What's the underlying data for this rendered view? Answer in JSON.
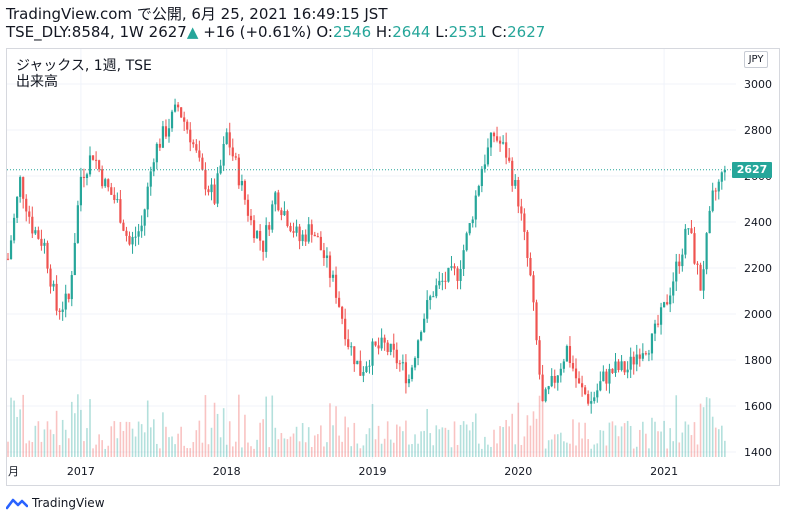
{
  "header": {
    "line1": "TradingView.com で公開, 6月 25, 2021 16:49:15 JST",
    "ticker": "TSE_DLY:8584, 1W",
    "price": "2627",
    "change": "+16 (+0.61%)",
    "o_label": "O:",
    "o_value": "2546",
    "h_label": "H:",
    "h_value": "2644",
    "l_label": "L:",
    "l_value": "2531",
    "c_label": "C:",
    "c_value": "2627"
  },
  "legend": {
    "line1": "ジャックス, 1週, TSE",
    "line2": "出来高"
  },
  "currency_badge": "JPY",
  "last_price_tag": "2627",
  "footer": {
    "brand": "TradingView"
  },
  "chart_data": {
    "type": "candlestick",
    "interval": "1W",
    "y_range": [
      1380,
      3060
    ],
    "y_ticks": [
      "1400",
      "1600",
      "1800",
      "2000",
      "2200",
      "2400",
      "2600",
      "2800",
      "3000"
    ],
    "x_ticks": [
      "月",
      "2017",
      "2018",
      "2019",
      "2020",
      "2021"
    ],
    "last_price": 2627,
    "last_price_line": "dotted",
    "colors": {
      "up": "#26a69a",
      "down": "#ef5350",
      "grid": "#f0f3fa",
      "axis_text": "#131722"
    },
    "close_path": [
      [
        "2016-07",
        2240
      ],
      [
        "2016-08",
        2580
      ],
      [
        "2016-09",
        2380
      ],
      [
        "2016-10",
        2300
      ],
      [
        "2016-11",
        2020
      ],
      [
        "2016-12",
        2060
      ],
      [
        "2017-01",
        2600
      ],
      [
        "2017-02",
        2700
      ],
      [
        "2017-03",
        2560
      ],
      [
        "2017-04",
        2480
      ],
      [
        "2017-05",
        2300
      ],
      [
        "2017-06",
        2380
      ],
      [
        "2017-07",
        2700
      ],
      [
        "2017-08",
        2800
      ],
      [
        "2017-09",
        2900
      ],
      [
        "2017-10",
        2780
      ],
      [
        "2017-11",
        2600
      ],
      [
        "2017-12",
        2500
      ],
      [
        "2018-01",
        2780
      ],
      [
        "2018-02",
        2600
      ],
      [
        "2018-03",
        2400
      ],
      [
        "2018-04",
        2300
      ],
      [
        "2018-05",
        2520
      ],
      [
        "2018-06",
        2420
      ],
      [
        "2018-07",
        2320
      ],
      [
        "2018-08",
        2380
      ],
      [
        "2018-09",
        2250
      ],
      [
        "2018-10",
        2100
      ],
      [
        "2018-11",
        1880
      ],
      [
        "2018-12",
        1750
      ],
      [
        "2019-01",
        1840
      ],
      [
        "2019-02",
        1860
      ],
      [
        "2019-03",
        1800
      ],
      [
        "2019-04",
        1720
      ],
      [
        "2019-05",
        1960
      ],
      [
        "2019-06",
        2100
      ],
      [
        "2019-07",
        2150
      ],
      [
        "2019-08",
        2180
      ],
      [
        "2019-09",
        2380
      ],
      [
        "2019-10",
        2640
      ],
      [
        "2019-11",
        2780
      ],
      [
        "2019-12",
        2700
      ],
      [
        "2020-01",
        2500
      ],
      [
        "2020-02",
        2150
      ],
      [
        "2020-03",
        1600
      ],
      [
        "2020-04",
        1720
      ],
      [
        "2020-05",
        1850
      ],
      [
        "2020-06",
        1680
      ],
      [
        "2020-07",
        1620
      ],
      [
        "2020-08",
        1720
      ],
      [
        "2020-09",
        1760
      ],
      [
        "2020-10",
        1760
      ],
      [
        "2020-11",
        1850
      ],
      [
        "2020-12",
        1880
      ],
      [
        "2021-01",
        2020
      ],
      [
        "2021-02",
        2200
      ],
      [
        "2021-03",
        2380
      ],
      [
        "2021-04",
        2120
      ],
      [
        "2021-05",
        2500
      ],
      [
        "2021-06",
        2627
      ]
    ]
  }
}
